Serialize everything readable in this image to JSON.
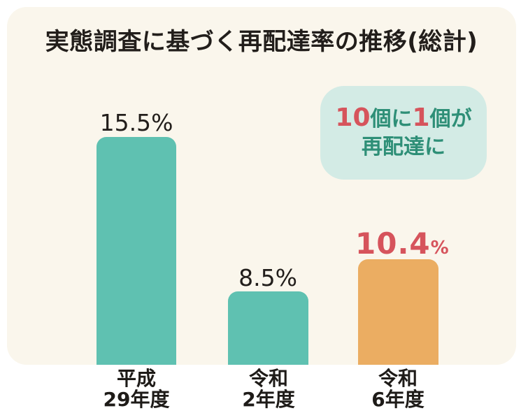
{
  "page": {
    "title": "実態調査に基づく再配達率の推移(総計)"
  },
  "colors": {
    "background": "#FFFFFF",
    "card_background": "#FAF6EC",
    "teal_bar": "#5FC1B1",
    "orange_bar": "#EBAD62",
    "red_accent": "#D6545C",
    "badge_background": "#D3EBE5",
    "badge_text_teal": "#2E8F77",
    "dark_text": "#221E1B"
  },
  "badge": {
    "line1_parts": {
      "num1": "10",
      "text1": "個に",
      "num2": "1",
      "text2": "個が"
    },
    "line2": "再配達に"
  },
  "bars": [
    {
      "value_label": "15.5",
      "unit": "%",
      "category_line1": "平成",
      "category_line2": "29年度"
    },
    {
      "value_label": "8.5",
      "unit": "%",
      "category_line1": "令和",
      "category_line2": "2年度"
    },
    {
      "value_label": "10.4",
      "unit": "%",
      "category_line1": "令和",
      "category_line2": "6年度"
    }
  ],
  "chart_data": {
    "type": "bar",
    "title": "実態調査に基づく再配達率の推移(総計)",
    "categories": [
      "平成29年度",
      "令和2年度",
      "令和6年度"
    ],
    "values": [
      15.5,
      8.5,
      10.4
    ],
    "unit": "%",
    "bar_colors": [
      "#5FC1B1",
      "#5FC1B1",
      "#EBAD62"
    ],
    "annotation": "10個に1個が再配達に",
    "ylim": [
      0,
      16
    ],
    "grid": false,
    "legend": false
  }
}
